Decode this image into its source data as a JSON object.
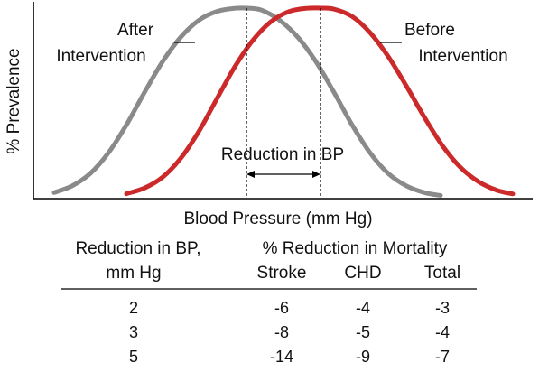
{
  "chart_data": {
    "type": "line",
    "xlabel": "Blood Pressure (mm Hg)",
    "ylabel": "% Prevalence",
    "series": [
      {
        "name": "After Intervention",
        "color": "#8a8a8a",
        "label_lines": [
          "After",
          "Intervention"
        ],
        "x": [
          60,
          80,
          100,
          120,
          140,
          160,
          180,
          200,
          220,
          240,
          260,
          273,
          290,
          310,
          330,
          350,
          370,
          390,
          410,
          430,
          450,
          470,
          488
        ],
        "y": [
          0.027,
          0.063,
          0.128,
          0.236,
          0.384,
          0.555,
          0.717,
          0.846,
          0.935,
          0.982,
          0.999,
          1.0,
          0.989,
          0.935,
          0.846,
          0.717,
          0.555,
          0.384,
          0.236,
          0.128,
          0.063,
          0.027,
          0.012
        ]
      },
      {
        "name": "Before Intervention",
        "color": "#cc2a2a",
        "label_lines": [
          "Before",
          "Intervention"
        ],
        "x": [
          140,
          160,
          180,
          200,
          220,
          240,
          260,
          280,
          300,
          320,
          340,
          355,
          370,
          390,
          410,
          430,
          450,
          470,
          490,
          510,
          530,
          550,
          568
        ],
        "y": [
          0.021,
          0.051,
          0.108,
          0.207,
          0.348,
          0.52,
          0.69,
          0.83,
          0.928,
          0.982,
          0.999,
          1.0,
          0.995,
          0.956,
          0.87,
          0.745,
          0.59,
          0.425,
          0.275,
          0.16,
          0.085,
          0.04,
          0.02
        ]
      }
    ],
    "annotation": "Reduction in BP",
    "table": {
      "header_left_lines": [
        "Reduction in BP,",
        "mm Hg"
      ],
      "header_right": "% Reduction in Mortality",
      "columns": [
        "Stroke",
        "CHD",
        "Total"
      ],
      "rows": [
        {
          "reduction": "2",
          "stroke": "-6",
          "chd": "-4",
          "total": "-3"
        },
        {
          "reduction": "3",
          "stroke": "-8",
          "chd": "-5",
          "total": "-4"
        },
        {
          "reduction": "5",
          "stroke": "-14",
          "chd": "-9",
          "total": "-7"
        }
      ]
    }
  }
}
